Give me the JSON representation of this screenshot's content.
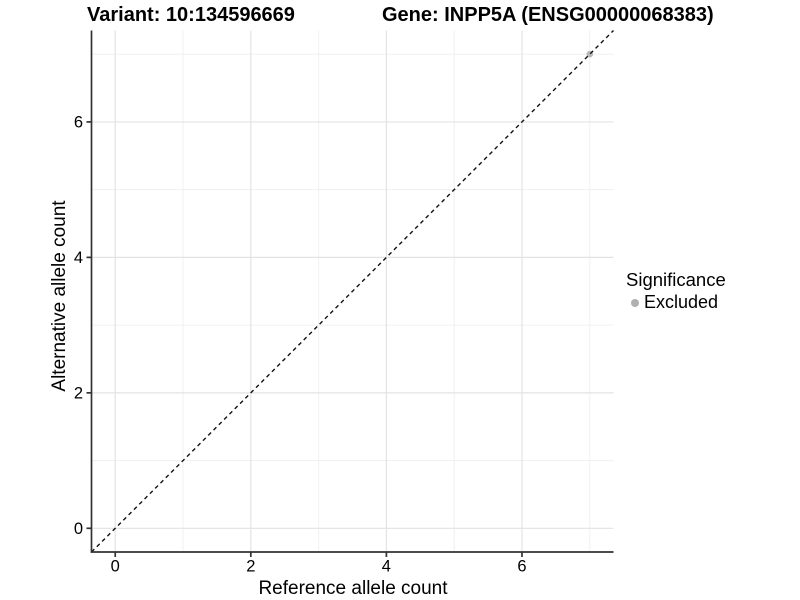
{
  "figure": {
    "title_left": "Variant: 10:134596669",
    "title_right": "Gene: INPP5A (ENSG00000068383)"
  },
  "chart_data": {
    "type": "scatter",
    "xlabel": "Reference allele count",
    "ylabel": "Alternative allele count",
    "xlim": [
      -0.35,
      7.35
    ],
    "ylim": [
      -0.35,
      7.35
    ],
    "xticks": [
      0,
      2,
      4,
      6
    ],
    "yticks": [
      0,
      2,
      4,
      6
    ],
    "minor_gridlines_x": [
      1,
      3,
      5,
      7
    ],
    "minor_gridlines_y": [
      1,
      3,
      5,
      7
    ],
    "grid": true,
    "series": [
      {
        "name": "Excluded",
        "color": "#b8b8b8",
        "points": [
          [
            7,
            7
          ]
        ]
      }
    ],
    "reference_line": {
      "style": "dashed",
      "slope": 1,
      "intercept": 0,
      "color": "#111111"
    },
    "legend": {
      "position": "right",
      "title": "Significance",
      "entries": [
        {
          "label": "Excluded",
          "color": "#b0b0b0"
        }
      ]
    },
    "colors": {
      "panel_background": "#ffffff",
      "major_gridline": "#e3e3e3",
      "minor_gridline": "#f0f0f0",
      "axis_line": "#333333",
      "tick_label": "#000000"
    }
  }
}
